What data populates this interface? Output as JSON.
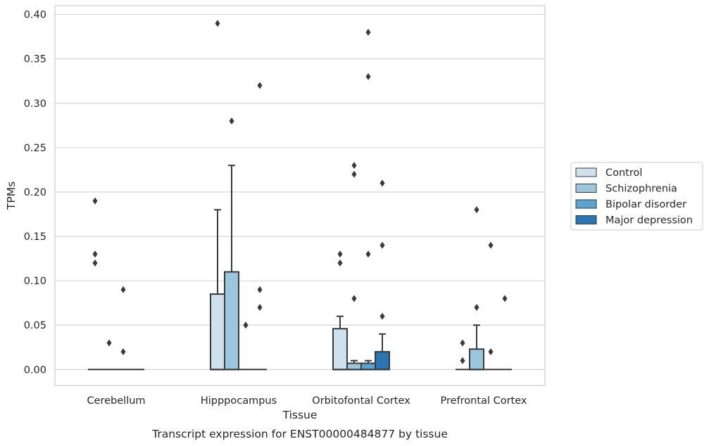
{
  "chart_data": {
    "type": "box",
    "caption": "Transcript expression for ENST00000484877 by tissue",
    "xlabel": "Tissue",
    "ylabel": "TPMs",
    "ylim": [
      -0.018,
      0.41
    ],
    "yticks": [
      "0.00",
      "0.05",
      "0.10",
      "0.15",
      "0.20",
      "0.25",
      "0.30",
      "0.35",
      "0.40"
    ],
    "grid": true,
    "legend_position": "right",
    "categories": [
      "Cerebellum",
      "Hipppocampus",
      "Orbitofontal Cortex",
      "Prefrontal Cortex"
    ],
    "series": [
      {
        "name": "Control",
        "color": "#cfe0ef",
        "boxes": [
          {
            "q1": 0,
            "median": 0,
            "q3": 0,
            "whisker_low": 0,
            "whisker_high": 0,
            "outliers": [
              0.19,
              0.13,
              0.12
            ]
          },
          {
            "q1": 0,
            "median": 0,
            "q3": 0.085,
            "whisker_low": 0,
            "whisker_high": 0.18,
            "outliers": [
              0.39
            ]
          },
          {
            "q1": 0,
            "median": 0,
            "q3": 0.046,
            "whisker_low": 0,
            "whisker_high": 0.06,
            "outliers": [
              0.13,
              0.12
            ]
          },
          {
            "q1": 0,
            "median": 0,
            "q3": 0,
            "whisker_low": 0,
            "whisker_high": 0,
            "outliers": [
              0.03,
              0.01
            ]
          }
        ]
      },
      {
        "name": "Schizophrenia",
        "color": "#9cc5de",
        "boxes": [
          {
            "q1": 0,
            "median": 0,
            "q3": 0,
            "whisker_low": 0,
            "whisker_high": 0,
            "outliers": [
              0.03
            ]
          },
          {
            "q1": 0,
            "median": 0,
            "q3": 0.11,
            "whisker_low": 0,
            "whisker_high": 0.23,
            "outliers": [
              0.28
            ]
          },
          {
            "q1": 0,
            "median": 0,
            "q3": 0.007,
            "whisker_low": 0,
            "whisker_high": 0.01,
            "outliers": [
              0.23,
              0.22,
              0.08
            ]
          },
          {
            "q1": 0,
            "median": 0,
            "q3": 0.023,
            "whisker_low": 0,
            "whisker_high": 0.05,
            "outliers": [
              0.18,
              0.07
            ]
          }
        ]
      },
      {
        "name": "Bipolar disorder",
        "color": "#5ba3d0",
        "boxes": [
          {
            "q1": 0,
            "median": 0,
            "q3": 0,
            "whisker_low": 0,
            "whisker_high": 0,
            "outliers": [
              0.09,
              0.02
            ]
          },
          {
            "q1": 0,
            "median": 0,
            "q3": 0,
            "whisker_low": 0,
            "whisker_high": 0,
            "outliers": [
              0.05
            ]
          },
          {
            "q1": 0,
            "median": 0,
            "q3": 0.007,
            "whisker_low": 0,
            "whisker_high": 0.01,
            "outliers": [
              0.38,
              0.33,
              0.13
            ]
          },
          {
            "q1": 0,
            "median": 0,
            "q3": 0,
            "whisker_low": 0,
            "whisker_high": 0,
            "outliers": [
              0.14,
              0.02
            ]
          }
        ]
      },
      {
        "name": "Major depression",
        "color": "#2a75b3",
        "boxes": [
          {
            "q1": 0,
            "median": 0,
            "q3": 0,
            "whisker_low": 0,
            "whisker_high": 0,
            "outliers": []
          },
          {
            "q1": 0,
            "median": 0,
            "q3": 0,
            "whisker_low": 0,
            "whisker_high": 0,
            "outliers": [
              0.32,
              0.09,
              0.07
            ]
          },
          {
            "q1": 0,
            "median": 0,
            "q3": 0.02,
            "whisker_low": 0,
            "whisker_high": 0.04,
            "outliers": [
              0.21,
              0.14,
              0.06
            ]
          },
          {
            "q1": 0,
            "median": 0,
            "q3": 0,
            "whisker_low": 0,
            "whisker_high": 0,
            "outliers": [
              0.08
            ]
          }
        ]
      }
    ]
  }
}
